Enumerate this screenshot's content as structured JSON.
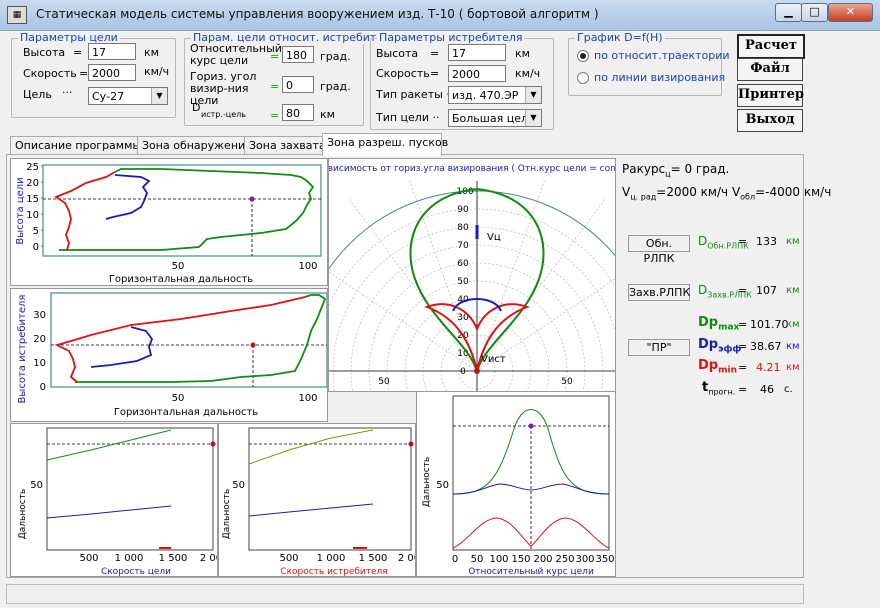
{
  "window": {
    "title": "Статическая модель системы управления вооружением  изд. Т-10  ( бортовой алгоритм )",
    "icon": "app-icon"
  },
  "target_params": {
    "title": "Параметры цели",
    "altitude_label": "Высота",
    "altitude_value": "17",
    "altitude_unit": "км",
    "speed_label": "Скорость",
    "speed_value": "2000",
    "speed_unit": "км/ч",
    "target_label": "Цель",
    "target_value": "Су-27",
    "target_dots": "···"
  },
  "relative_params": {
    "title": "Парам. цели относит. истребит.",
    "course_label": "Относительный курс цели",
    "course_value": "180",
    "course_unit": "град.",
    "horiz_label": "Гориз. угол визир-ния цели",
    "horiz_value": "0",
    "horiz_unit": "град.",
    "d_label": "D",
    "d_sub": "истр.-цель",
    "d_value": "80",
    "d_unit": "км",
    "eq": "="
  },
  "fighter_params": {
    "title": "Параметры истребителя",
    "altitude_label": "Высота",
    "altitude_value": "17",
    "altitude_unit": "км",
    "speed_label": "Скорость",
    "speed_value": "2000",
    "speed_unit": "км/ч",
    "missile_label": "Тип ракеты ··",
    "missile_value": "изд. 470.ЭР",
    "target_type_label": "Тип цели ··",
    "target_type_value": "Большая цель"
  },
  "graph_group": {
    "title": "График  D=f(H)",
    "option1": "по относит.траектории",
    "option2": "по линии визирования"
  },
  "buttons": {
    "calc": "Расчет",
    "file": "Файл",
    "printer": "Принтер",
    "exit": "Выход"
  },
  "tabs": [
    "Описание программы",
    "Зона обнаружения",
    "Зона захвата",
    "Зона разреш. пусков"
  ],
  "left_chart1": {
    "ylabel": "Высота цели",
    "xlabel": "Горизонтальная дальность",
    "yticks": [
      "0",
      "5",
      "10",
      "15",
      "20",
      "25"
    ],
    "xticks": [
      "50",
      "100"
    ]
  },
  "left_chart2": {
    "ylabel": "Высота истребителя",
    "xlabel": "Горизонтальная дальность",
    "yticks": [
      "0",
      "10",
      "20",
      "30"
    ],
    "xticks": [
      "50",
      "100"
    ]
  },
  "polar": {
    "title": "Зависимость от гориз.угла визирования ( Отн.курс цели = const)",
    "rticks": [
      "0",
      "10",
      "20",
      "30",
      "40",
      "50",
      "60",
      "70",
      "80",
      "90",
      "100"
    ],
    "hticks": [
      "50",
      "50"
    ],
    "label_target": "Vц",
    "label_fighter": "Vист"
  },
  "bottom1": {
    "ylabel": "Дальность",
    "xlabel": "Скорость цели",
    "xticks": [
      "500",
      "1 000",
      "1 500",
      "2 00"
    ],
    "ytick": "50"
  },
  "bottom2": {
    "ylabel": "Дальность",
    "xlabel": "Скорость истребителя",
    "xticks": [
      "500",
      "1 000",
      "1 500",
      "2 00"
    ],
    "ytick": "50"
  },
  "bottom3": {
    "ylabel": "Дальность",
    "xlabel": "Относительный курс цели",
    "xticks": [
      "0",
      "50",
      "100",
      "150",
      "200",
      "250",
      "300",
      "350"
    ],
    "ytick": "50"
  },
  "info": {
    "rakurs": "Ракурс",
    "rakurs_sub": "ц",
    "rakurs_val": "= 0 град.",
    "v": "V",
    "v_sub": "ц. рад",
    "v_val": "=2000 км/ч",
    "vobl": "V",
    "vobl_sub": "обл",
    "vobl_val": "=-4000 км/ч",
    "obn_btn": "Обн. РЛПК",
    "obn_d": "D",
    "obn_sub": "Обн.РЛПК",
    "obn_val": "133",
    "zahv_btn": "Захв.РЛПК",
    "zahv_d": "D",
    "zahv_sub": "Захв.РЛПК",
    "zahv_val": "107",
    "pr_btn": "\"ПР\"",
    "dpmax": "Dp",
    "dpmax_sub": "max",
    "dpmax_val": "101.70",
    "dpeff": "Dp",
    "dpeff_sub": "эфф",
    "dpeff_val": "38.67",
    "dpmin": "Dp",
    "dpmin_sub": "min",
    "dpmin_val": "4.21",
    "t": "t",
    "t_sub": "прогн.",
    "t_val": "46",
    "unit_km": "км",
    "unit_s": "с.",
    "eq": "="
  },
  "colors": {
    "green": "#118a11",
    "red": "#e01010",
    "blue": "#1a1ab4",
    "header_blue": "#1f3fae"
  }
}
